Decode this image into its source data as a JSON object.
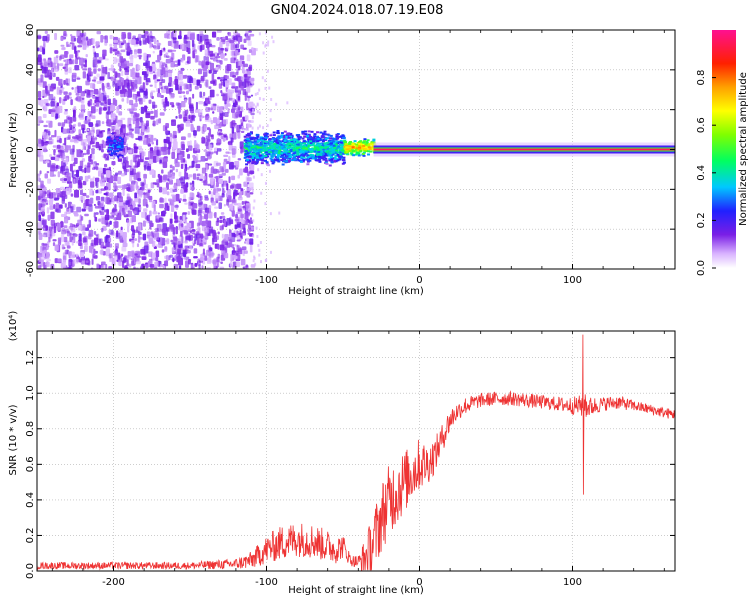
{
  "title": "GN04.2024.018.07.19.E08",
  "colors": {
    "line": "#ee3333",
    "frame": "#000000",
    "grid": "#b0b0b0",
    "spectrogram_noise": "#8833dd"
  },
  "chart_data": [
    {
      "type": "heatmap",
      "name": "spectrogram",
      "xlabel": "Height of straight line (km)",
      "ylabel": "Frequency (Hz)",
      "xlim": [
        -250,
        167
      ],
      "ylim": [
        -60,
        60
      ],
      "xticks": [
        {
          "value": -200,
          "label": "-200"
        },
        {
          "value": -100,
          "label": "-100"
        },
        {
          "value": 0,
          "label": "0"
        },
        {
          "value": 100,
          "label": "100"
        }
      ],
      "yticks": [
        {
          "value": -60,
          "label": "-60"
        },
        {
          "value": -40,
          "label": "-40"
        },
        {
          "value": -20,
          "label": "-20"
        },
        {
          "value": 0,
          "label": "0"
        },
        {
          "value": 20,
          "label": "20"
        },
        {
          "value": 40,
          "label": "40"
        },
        {
          "value": 60,
          "label": "60"
        }
      ],
      "grid": true,
      "colorbar": {
        "label": "Normalized spectral amplitude",
        "range": [
          0,
          1
        ],
        "colormap": "rainbow",
        "ticks": [
          {
            "value": 0.0,
            "label": "0.0"
          },
          {
            "value": 0.2,
            "label": "0.2"
          },
          {
            "value": 0.4,
            "label": "0.4"
          },
          {
            "value": 0.6,
            "label": "0.6"
          },
          {
            "value": 0.8,
            "label": "0.8"
          }
        ]
      },
      "regions": [
        {
          "x_from": -250,
          "x_to": -110,
          "y_from": -60,
          "y_to": 60,
          "amplitude": 0.1,
          "texture": "noise"
        },
        {
          "x_from": -205,
          "x_to": -195,
          "y_from": -5,
          "y_to": 10,
          "amplitude": 0.25,
          "texture": "blob"
        },
        {
          "x_from": -115,
          "x_to": -50,
          "y_from": -8,
          "y_to": 10,
          "amplitude": 0.4,
          "texture": "band"
        },
        {
          "x_from": -50,
          "x_to": -30,
          "y_from": -3,
          "y_to": 6,
          "amplitude": 0.75,
          "texture": "band"
        },
        {
          "x_from": -30,
          "x_to": 167,
          "y_from": -1,
          "y_to": 1,
          "amplitude": 0.95,
          "texture": "line"
        }
      ]
    },
    {
      "type": "line",
      "name": "snr",
      "xlabel": "Height of straight line (km)",
      "ylabel": "SNR (10 * v/v)",
      "scale_label": "(x10⁴)",
      "xlim": [
        -250,
        167
      ],
      "ylim": [
        0,
        1.35
      ],
      "xticks": [
        {
          "value": -200,
          "label": "-200"
        },
        {
          "value": -100,
          "label": "-100"
        },
        {
          "value": 0,
          "label": "0"
        },
        {
          "value": 100,
          "label": "100"
        }
      ],
      "yticks": [
        {
          "value": 0.0,
          "label": "0.0"
        },
        {
          "value": 0.2,
          "label": "0.2"
        },
        {
          "value": 0.4,
          "label": "0.4"
        },
        {
          "value": 0.6,
          "label": "0.6"
        },
        {
          "value": 0.8,
          "label": "0.8"
        },
        {
          "value": 1.0,
          "label": "1.0"
        },
        {
          "value": 1.2,
          "label": "1.2"
        }
      ],
      "grid": true,
      "series": [
        {
          "x": [
            -250,
            -200,
            -150,
            -120,
            -110,
            -100,
            -90,
            -80,
            -70,
            -60,
            -55,
            -50,
            -45,
            -40,
            -35,
            -30,
            -25,
            -20,
            -15,
            -10,
            -5,
            0,
            5,
            10,
            15,
            20,
            25,
            30,
            40,
            50,
            60,
            70,
            80,
            90,
            100,
            105,
            108,
            110,
            115,
            120,
            130,
            140,
            150,
            160,
            167
          ],
          "y": [
            0.03,
            0.03,
            0.03,
            0.04,
            0.06,
            0.12,
            0.16,
            0.18,
            0.17,
            0.14,
            0.12,
            0.14,
            0.06,
            0.05,
            0.08,
            0.16,
            0.3,
            0.4,
            0.45,
            0.5,
            0.55,
            0.6,
            0.6,
            0.65,
            0.75,
            0.85,
            0.9,
            0.93,
            0.96,
            0.97,
            0.97,
            0.96,
            0.95,
            0.94,
            0.93,
            0.93,
            0.95,
            0.92,
            0.93,
            0.94,
            0.95,
            0.93,
            0.91,
            0.89,
            0.88
          ],
          "noise": [
            0.02,
            0.02,
            0.02,
            0.03,
            0.05,
            0.08,
            0.1,
            0.1,
            0.1,
            0.09,
            0.08,
            0.07,
            0.03,
            0.04,
            0.12,
            0.18,
            0.2,
            0.2,
            0.2,
            0.18,
            0.16,
            0.15,
            0.12,
            0.1,
            0.08,
            0.07,
            0.05,
            0.05,
            0.04,
            0.04,
            0.04,
            0.04,
            0.04,
            0.04,
            0.05,
            0.06,
            0.1,
            0.06,
            0.05,
            0.04,
            0.04,
            0.03,
            0.03,
            0.03,
            0.03
          ]
        }
      ],
      "annotations": [
        {
          "type": "spike",
          "x": 107,
          "y_min": 0.43,
          "y_max": 1.33
        }
      ]
    }
  ]
}
